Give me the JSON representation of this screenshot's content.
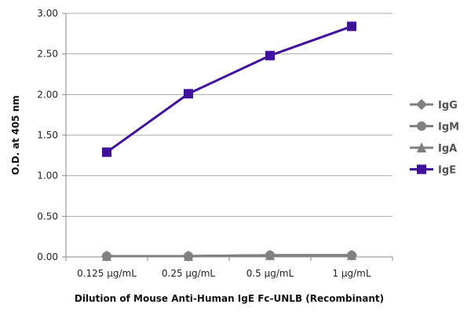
{
  "chart_data": {
    "type": "line",
    "title": "",
    "xlabel": "Dilution of Mouse Anti-Human IgE Fc-UNLB (Recombinant)",
    "ylabel": "O.D. at 405 nm",
    "categories": [
      "0.125 µg/mL",
      "0.25 µg/mL",
      "0.5 µg/mL",
      "1 µg/mL"
    ],
    "ylim": [
      0,
      3
    ],
    "yticks": [
      "0.00",
      "0.50",
      "1.00",
      "1.50",
      "2.00",
      "2.50",
      "3.00"
    ],
    "grid": true,
    "legend_position": "right",
    "series": [
      {
        "name": "IgG",
        "values": [
          0.01,
          0.01,
          0.02,
          0.02
        ],
        "color": "#808080",
        "marker": "diamond"
      },
      {
        "name": "IgM",
        "values": [
          0.01,
          0.01,
          0.02,
          0.02
        ],
        "color": "#808080",
        "marker": "circle"
      },
      {
        "name": "IgA",
        "values": [
          0.01,
          0.01,
          0.02,
          0.02
        ],
        "color": "#808080",
        "marker": "triangle"
      },
      {
        "name": "IgE",
        "values": [
          1.29,
          2.01,
          2.48,
          2.84
        ],
        "color": "#40119a",
        "marker": "square"
      }
    ]
  }
}
